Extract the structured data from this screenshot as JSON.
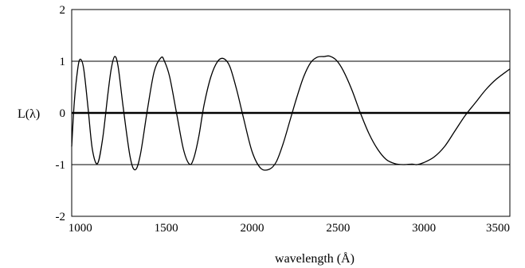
{
  "chart_data": {
    "type": "line",
    "title": "",
    "xlabel": "wavelength (Å)",
    "ylabel": "L(λ)",
    "xlim": [
      950,
      3500
    ],
    "ylim": [
      -2,
      2
    ],
    "x_ticks": [
      1000,
      1500,
      2000,
      2500,
      3000,
      3500
    ],
    "y_ticks": [
      -2,
      -1,
      0,
      1,
      2
    ],
    "grid": "horizontal lines at y = -1, 0, 1 (y = 0 drawn bold)",
    "legend": "none",
    "series": [
      {
        "color": "#000000",
        "x": [
          950,
          965,
          985,
          1000,
          1020,
          1045,
          1070,
          1100,
          1130,
          1160,
          1180,
          1200,
          1220,
          1250,
          1290,
          1320,
          1350,
          1390,
          1430,
          1470,
          1490,
          1520,
          1560,
          1600,
          1635,
          1660,
          1690,
          1720,
          1760,
          1800,
          1835,
          1870,
          1910,
          1950,
          2000,
          2050,
          2100,
          2140,
          2180,
          2220,
          2260,
          2300,
          2340,
          2380,
          2420,
          2450,
          2490,
          2530,
          2580,
          2630,
          2680,
          2730,
          2780,
          2830,
          2880,
          2930,
          2960,
          3000,
          3060,
          3120,
          3180,
          3240,
          3300,
          3360,
          3420,
          3500
        ],
        "y": [
          -0.65,
          0.2,
          0.85,
          1.04,
          0.85,
          0.1,
          -0.7,
          -0.98,
          -0.5,
          0.35,
          0.85,
          1.09,
          0.9,
          0.1,
          -0.85,
          -1.1,
          -0.8,
          0.05,
          0.8,
          1.07,
          1.0,
          0.7,
          0.0,
          -0.7,
          -0.99,
          -0.88,
          -0.45,
          0.15,
          0.7,
          1.0,
          1.05,
          0.9,
          0.45,
          -0.1,
          -0.75,
          -1.07,
          -1.09,
          -0.95,
          -0.6,
          -0.15,
          0.3,
          0.7,
          0.97,
          1.08,
          1.09,
          1.1,
          1.02,
          0.82,
          0.45,
          0.0,
          -0.4,
          -0.7,
          -0.9,
          -0.98,
          -1.0,
          -0.99,
          -1.0,
          -0.96,
          -0.85,
          -0.65,
          -0.35,
          -0.05,
          0.2,
          0.45,
          0.65,
          0.85
        ]
      }
    ]
  }
}
